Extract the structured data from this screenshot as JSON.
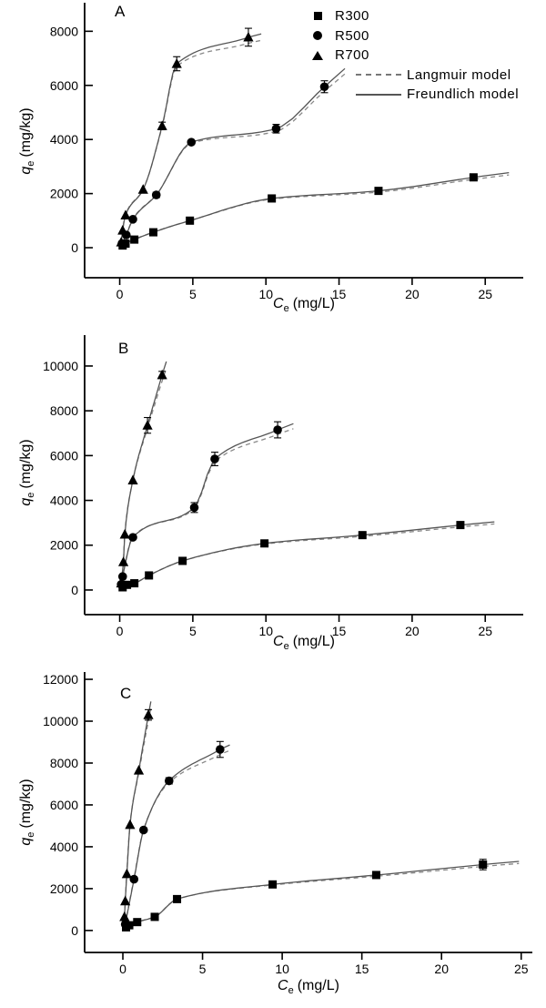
{
  "colors": {
    "ink": "#000000",
    "curve_solid": "#555555",
    "curve_dashed": "#888888",
    "background": "#ffffff"
  },
  "legend": {
    "items": [
      {
        "type": "marker",
        "marker": "square",
        "label": "R300"
      },
      {
        "type": "marker",
        "marker": "circle",
        "label": "R500"
      },
      {
        "type": "marker",
        "marker": "triangle",
        "label": "R700"
      },
      {
        "type": "line",
        "style": "dashed",
        "label": "Langmuir model"
      },
      {
        "type": "line",
        "style": "solid",
        "label": "Freundlich model"
      }
    ]
  },
  "axis_labels": {
    "x_var": "C",
    "x_sub": "e",
    "x_units": "(mg/L)",
    "y_var": "q",
    "y_sub": "e",
    "y_units": "(mg/kg)"
  },
  "chart_data": [
    {
      "type": "scatter",
      "panel_label": "A",
      "xlabel": "Ce (mg/L)",
      "ylabel": "qe (mg/kg)",
      "x_ticks": [
        0,
        5,
        10,
        15,
        20,
        25
      ],
      "y_ticks": [
        0,
        2000,
        4000,
        6000,
        8000
      ],
      "xlim": [
        -2.4,
        27.6
      ],
      "ylim": [
        -1110,
        9055
      ],
      "grid": false,
      "legend_position": "top-right",
      "models_shown": [
        "Langmuir model",
        "Freundlich model"
      ],
      "series": [
        {
          "name": "R300",
          "marker": "square",
          "points": [
            [
              0.2,
              80
            ],
            [
              0.4,
              150
            ],
            [
              1.0,
              300
            ],
            [
              2.3,
              570
            ],
            [
              4.8,
              1000
            ],
            [
              10.4,
              1820
            ],
            [
              17.7,
              2100,
              100
            ],
            [
              24.2,
              2600,
              120
            ]
          ]
        },
        {
          "name": "R500",
          "marker": "circle",
          "points": [
            [
              0.15,
              150
            ],
            [
              0.45,
              470
            ],
            [
              0.9,
              1050
            ],
            [
              2.5,
              1950,
              100
            ],
            [
              4.9,
              3900
            ],
            [
              10.7,
              4400,
              160
            ],
            [
              14.0,
              5950,
              220
            ]
          ]
        },
        {
          "name": "R700",
          "marker": "triangle",
          "points": [
            [
              0.1,
              200
            ],
            [
              0.2,
              640
            ],
            [
              0.4,
              1200
            ],
            [
              1.6,
              2150
            ],
            [
              2.9,
              4500,
              140
            ],
            [
              3.9,
              6800,
              260
            ],
            [
              8.8,
              7780,
              330
            ]
          ]
        }
      ]
    },
    {
      "type": "scatter",
      "panel_label": "B",
      "xlabel": "Ce (mg/L)",
      "ylabel": "qe (mg/kg)",
      "x_ticks": [
        0,
        5,
        10,
        15,
        20,
        25
      ],
      "y_ticks": [
        0,
        2000,
        4000,
        6000,
        8000,
        10000
      ],
      "xlim": [
        -2.4,
        27.6
      ],
      "ylim": [
        -1100,
        11380
      ],
      "grid": false,
      "models_shown": [
        "Langmuir model",
        "Freundlich model"
      ],
      "series": [
        {
          "name": "R300",
          "marker": "square",
          "points": [
            [
              0.2,
              120
            ],
            [
              0.5,
              230
            ],
            [
              1.0,
              300
            ],
            [
              2.0,
              650
            ],
            [
              4.3,
              1300
            ],
            [
              9.9,
              2080
            ],
            [
              16.6,
              2450
            ],
            [
              23.3,
              2900,
              130
            ]
          ]
        },
        {
          "name": "R500",
          "marker": "circle",
          "points": [
            [
              0.1,
              250
            ],
            [
              0.2,
              600
            ],
            [
              0.9,
              2350
            ],
            [
              5.1,
              3680,
              220
            ],
            [
              6.5,
              5850,
              300
            ],
            [
              10.8,
              7150,
              360
            ]
          ]
        },
        {
          "name": "R700",
          "marker": "triangle",
          "points": [
            [
              0.1,
              300
            ],
            [
              0.25,
              1250
            ],
            [
              0.35,
              2480
            ],
            [
              0.9,
              4900
            ],
            [
              1.9,
              7350,
              350
            ],
            [
              2.9,
              9600,
              160
            ]
          ]
        }
      ]
    },
    {
      "type": "scatter",
      "panel_label": "C",
      "xlabel": "Ce (mg/L)",
      "ylabel": "qe (mg/kg)",
      "x_ticks": [
        0,
        5,
        10,
        15,
        20,
        25
      ],
      "y_ticks": [
        0,
        2000,
        4000,
        6000,
        8000,
        10000,
        12000
      ],
      "xlim": [
        -2.4,
        25.7
      ],
      "ylim": [
        -1050,
        12350
      ],
      "grid": false,
      "models_shown": [
        "Langmuir model",
        "Freundlich model"
      ],
      "series": [
        {
          "name": "R300",
          "marker": "square",
          "points": [
            [
              0.2,
              150
            ],
            [
              0.4,
              250
            ],
            [
              0.9,
              400
            ],
            [
              2.0,
              650
            ],
            [
              3.4,
              1500
            ],
            [
              9.4,
              2200
            ],
            [
              15.9,
              2650,
              150
            ],
            [
              22.6,
              3150,
              250
            ]
          ]
        },
        {
          "name": "R500",
          "marker": "circle",
          "points": [
            [
              0.15,
              300
            ],
            [
              0.7,
              2450
            ],
            [
              1.3,
              4800
            ],
            [
              2.9,
              7150,
              150
            ],
            [
              6.1,
              8650,
              380
            ]
          ]
        },
        {
          "name": "R700",
          "marker": "triangle",
          "points": [
            [
              0.1,
              650
            ],
            [
              0.15,
              1400
            ],
            [
              0.25,
              2700
            ],
            [
              0.45,
              5050
            ],
            [
              1.0,
              7650
            ],
            [
              1.6,
              10300,
              250
            ]
          ]
        }
      ]
    }
  ]
}
